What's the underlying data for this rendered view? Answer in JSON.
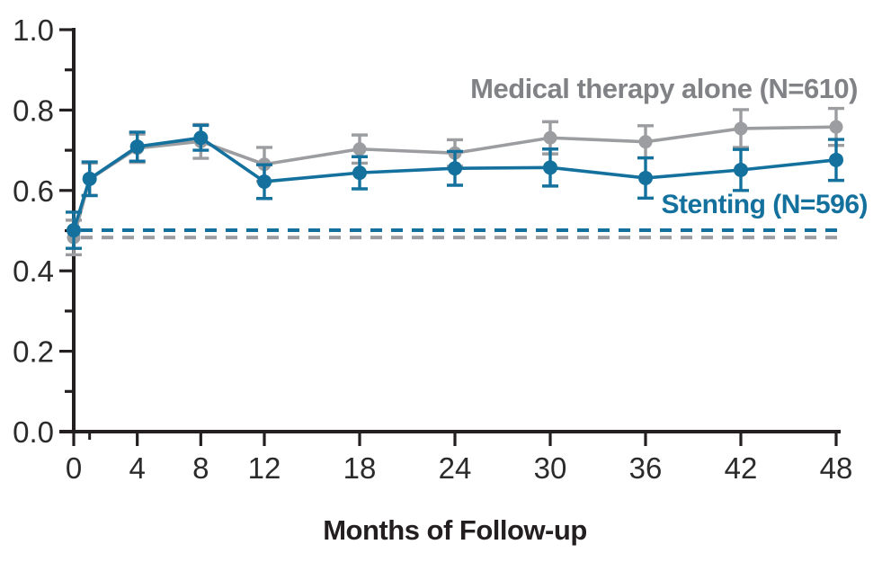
{
  "chart_data": {
    "type": "line",
    "title": "",
    "xlabel": "Months of Follow-up",
    "ylabel": "",
    "xlim": [
      0,
      48
    ],
    "ylim": [
      0.0,
      1.0
    ],
    "grid": false,
    "x_ticks_major": [
      0,
      4,
      8,
      12,
      18,
      24,
      30,
      36,
      42,
      48
    ],
    "x_ticks_minor": [
      1
    ],
    "y_ticks_major": [
      0.0,
      0.2,
      0.4,
      0.6,
      0.8,
      1.0
    ],
    "y_tick_minor_step": 0.1,
    "axis_color": "#231f20",
    "text_color": "#2b2b2b",
    "x": [
      0,
      1,
      4,
      8,
      12,
      18,
      24,
      30,
      36,
      42,
      48
    ],
    "series": [
      {
        "id": "medical",
        "name": "Medical therapy alone (N=610)",
        "color": "#9b9da0",
        "label_color": "#808285",
        "values": [
          0.483,
          0.628,
          0.705,
          0.722,
          0.665,
          0.703,
          0.693,
          0.731,
          0.721,
          0.754,
          0.758
        ],
        "errors": [
          0.043,
          0.04,
          0.035,
          0.042,
          0.042,
          0.035,
          0.033,
          0.04,
          0.04,
          0.047,
          0.046
        ],
        "baseline": 0.483
      },
      {
        "id": "stenting",
        "name": "Stenting (N=596)",
        "color": "#14719e",
        "label_color": "#14719e",
        "values": [
          0.501,
          0.629,
          0.709,
          0.731,
          0.622,
          0.644,
          0.655,
          0.657,
          0.631,
          0.651,
          0.676
        ],
        "errors": [
          0.045,
          0.042,
          0.036,
          0.031,
          0.042,
          0.04,
          0.042,
          0.046,
          0.05,
          0.051,
          0.051
        ],
        "baseline": 0.501
      }
    ],
    "legend_position": "inline-annotations"
  }
}
